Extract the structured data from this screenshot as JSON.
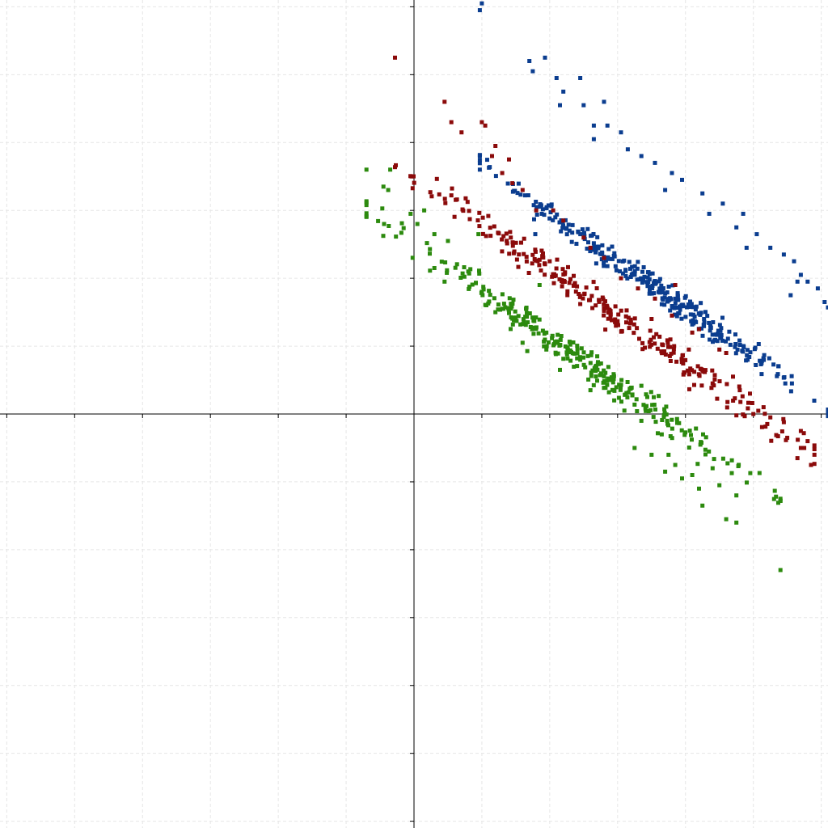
{
  "chart_data": {
    "type": "scatter",
    "title": "",
    "xlabel": "",
    "ylabel": "",
    "xlim": [
      -6.1,
      6.1
    ],
    "ylim": [
      -6.1,
      6.1
    ],
    "tick_step": 1,
    "grid": true,
    "tick_labels": "none",
    "legend": "none",
    "marker": "square",
    "series": [
      {
        "color": "#0b3d8f",
        "slope": -0.71,
        "intercept": 4.38,
        "spread": 0.11,
        "points": [
          [
            1.0,
            6.05
          ],
          [
            0.97,
            5.95
          ],
          [
            1.7,
            5.2
          ],
          [
            1.93,
            5.25
          ],
          [
            1.75,
            5.05
          ],
          [
            2.1,
            4.95
          ],
          [
            2.45,
            4.95
          ],
          [
            2.2,
            4.75
          ],
          [
            2.15,
            4.55
          ],
          [
            2.8,
            4.6
          ],
          [
            2.5,
            4.55
          ],
          [
            2.65,
            4.25
          ],
          [
            2.85,
            4.25
          ],
          [
            2.65,
            4.05
          ],
          [
            3.05,
            4.15
          ],
          [
            3.15,
            3.9
          ],
          [
            3.35,
            3.8
          ],
          [
            3.55,
            3.7
          ],
          [
            3.8,
            3.55
          ],
          [
            3.95,
            3.45
          ],
          [
            3.7,
            3.3
          ],
          [
            4.25,
            3.25
          ],
          [
            4.55,
            3.1
          ],
          [
            4.35,
            2.95
          ],
          [
            4.85,
            2.95
          ],
          [
            4.75,
            2.75
          ],
          [
            5.05,
            2.65
          ],
          [
            5.25,
            2.45
          ],
          [
            5.45,
            2.35
          ],
          [
            4.9,
            2.45
          ],
          [
            5.6,
            2.25
          ],
          [
            5.65,
            1.95
          ],
          [
            5.8,
            1.95
          ],
          [
            5.95,
            1.85
          ],
          [
            6.05,
            1.65
          ],
          [
            6.1,
            1.57
          ],
          [
            5.55,
            1.75
          ],
          [
            5.7,
            2.05
          ]
        ],
        "generated_count": 320
      },
      {
        "color": "#8b0a0a",
        "slope": -0.7,
        "intercept": 3.52,
        "spread": 0.11,
        "points": [
          [
            -0.28,
            5.25
          ],
          [
            0.45,
            4.6
          ],
          [
            0.55,
            4.3
          ],
          [
            0.7,
            4.15
          ],
          [
            1.0,
            4.3
          ],
          [
            1.05,
            4.25
          ],
          [
            1.2,
            3.95
          ],
          [
            1.15,
            3.8
          ],
          [
            1.4,
            3.75
          ],
          [
            1.3,
            3.55
          ],
          [
            1.45,
            3.4
          ],
          [
            1.6,
            3.3
          ],
          [
            1.8,
            3.0
          ],
          [
            2.05,
            3.0
          ],
          [
            2.2,
            2.85
          ],
          [
            2.5,
            2.6
          ],
          [
            2.6,
            2.45
          ],
          [
            2.8,
            2.3
          ],
          [
            3.05,
            2.0
          ],
          [
            3.3,
            1.85
          ],
          [
            3.55,
            1.7
          ],
          [
            3.85,
            1.9
          ],
          [
            3.8,
            1.45
          ],
          [
            3.5,
            1.4
          ],
          [
            4.1,
            1.2
          ],
          [
            4.2,
            1.25
          ],
          [
            4.5,
            0.95
          ],
          [
            4.6,
            0.9
          ],
          [
            4.05,
            0.95
          ],
          [
            4.25,
            0.65
          ],
          [
            4.4,
            0.45
          ],
          [
            4.7,
            0.55
          ],
          [
            4.8,
            0.35
          ],
          [
            4.95,
            0.3
          ],
          [
            5.15,
            0.1
          ],
          [
            4.75,
            -0.02
          ],
          [
            5.0,
            0.0
          ],
          [
            5.25,
            -0.05
          ],
          [
            5.45,
            -0.12
          ],
          [
            5.7,
            -0.25
          ],
          [
            5.5,
            -0.35
          ],
          [
            5.8,
            -0.4
          ],
          [
            5.75,
            -0.5
          ],
          [
            5.65,
            -0.65
          ],
          [
            5.9,
            -0.6
          ],
          [
            5.7,
            -0.5
          ],
          [
            5.85,
            -0.75
          ]
        ],
        "generated_count": 260
      },
      {
        "color": "#2c8a0e",
        "slope": -0.7,
        "intercept": 2.52,
        "spread": 0.11,
        "points": [
          [
            -0.7,
            3.6
          ],
          [
            -0.35,
            3.6
          ],
          [
            -0.45,
            3.35
          ],
          [
            -0.38,
            3.3
          ],
          [
            -0.05,
            2.95
          ],
          [
            0.15,
            3.0
          ],
          [
            0.05,
            2.8
          ],
          [
            0.3,
            2.65
          ],
          [
            0.5,
            2.55
          ],
          [
            0.95,
            2.65
          ],
          [
            0.3,
            2.15
          ],
          [
            0.45,
            1.95
          ],
          [
            0.8,
            2.1
          ],
          [
            1.0,
            1.8
          ],
          [
            1.2,
            1.5
          ],
          [
            1.3,
            1.55
          ],
          [
            1.85,
            1.9
          ],
          [
            1.65,
            1.55
          ],
          [
            1.95,
            1.2
          ],
          [
            1.6,
            1.05
          ],
          [
            1.95,
            0.95
          ],
          [
            2.15,
            0.65
          ],
          [
            2.45,
            0.8
          ],
          [
            2.7,
            0.85
          ],
          [
            2.6,
            0.35
          ],
          [
            2.95,
            0.2
          ],
          [
            3.1,
            0.05
          ],
          [
            3.35,
            -0.1
          ],
          [
            3.65,
            -0.3
          ],
          [
            3.25,
            -0.5
          ],
          [
            3.5,
            -0.6
          ],
          [
            3.75,
            -0.6
          ],
          [
            3.85,
            -0.75
          ],
          [
            3.7,
            -0.85
          ],
          [
            3.95,
            -0.95
          ],
          [
            4.1,
            -0.9
          ],
          [
            4.4,
            -0.8
          ],
          [
            4.2,
            -1.1
          ],
          [
            4.5,
            -1.05
          ],
          [
            4.75,
            -1.2
          ],
          [
            4.25,
            -1.35
          ],
          [
            4.6,
            -1.55
          ],
          [
            4.75,
            -1.6
          ],
          [
            5.4,
            -2.3
          ]
        ],
        "generated_count": 290
      }
    ]
  }
}
